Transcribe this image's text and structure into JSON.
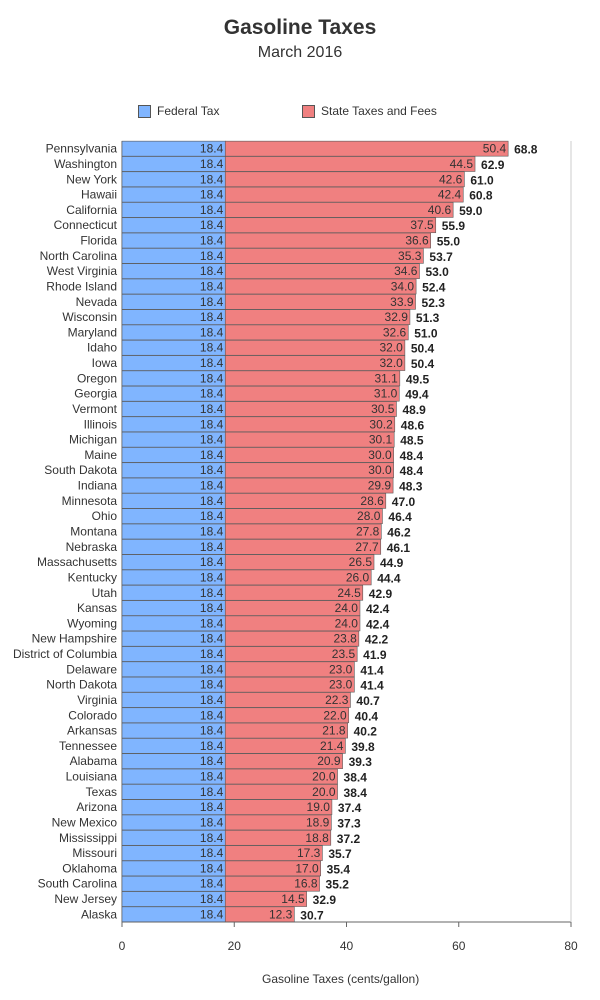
{
  "colors": {
    "federal": "#80b5ff",
    "state": "#f08080",
    "axis": "#666666",
    "text": "#333333"
  },
  "chart_data": {
    "type": "bar",
    "orientation": "horizontal",
    "stacked": true,
    "title": "Gasoline Taxes",
    "subtitle": "March 2016",
    "xlabel": "Gasoline Taxes (cents/gallon)",
    "xlim": [
      0,
      80
    ],
    "xticks": [
      0,
      20,
      40,
      60,
      80
    ],
    "grid": false,
    "legend_position": "top",
    "categories": [
      "Pennsylvania",
      "Washington",
      "New York",
      "Hawaii",
      "California",
      "Connecticut",
      "Florida",
      "North Carolina",
      "West Virginia",
      "Rhode Island",
      "Nevada",
      "Wisconsin",
      "Maryland",
      "Idaho",
      "Iowa",
      "Oregon",
      "Georgia",
      "Vermont",
      "Illinois",
      "Michigan",
      "Maine",
      "South Dakota",
      "Indiana",
      "Minnesota",
      "Ohio",
      "Montana",
      "Nebraska",
      "Massachusetts",
      "Kentucky",
      "Utah",
      "Kansas",
      "Wyoming",
      "New Hampshire",
      "District of Columbia",
      "Delaware",
      "North Dakota",
      "Virginia",
      "Colorado",
      "Arkansas",
      "Tennessee",
      "Alabama",
      "Louisiana",
      "Texas",
      "Arizona",
      "New Mexico",
      "Mississippi",
      "Missouri",
      "Oklahoma",
      "South Carolina",
      "New Jersey",
      "Alaska"
    ],
    "series": [
      {
        "name": "Federal Tax",
        "values": [
          18.4,
          18.4,
          18.4,
          18.4,
          18.4,
          18.4,
          18.4,
          18.4,
          18.4,
          18.4,
          18.4,
          18.4,
          18.4,
          18.4,
          18.4,
          18.4,
          18.4,
          18.4,
          18.4,
          18.4,
          18.4,
          18.4,
          18.4,
          18.4,
          18.4,
          18.4,
          18.4,
          18.4,
          18.4,
          18.4,
          18.4,
          18.4,
          18.4,
          18.4,
          18.4,
          18.4,
          18.4,
          18.4,
          18.4,
          18.4,
          18.4,
          18.4,
          18.4,
          18.4,
          18.4,
          18.4,
          18.4,
          18.4,
          18.4,
          18.4,
          18.4
        ]
      },
      {
        "name": "State Taxes and Fees",
        "values": [
          50.4,
          44.5,
          42.6,
          42.4,
          40.6,
          37.5,
          36.6,
          35.3,
          34.6,
          34.0,
          33.9,
          32.9,
          32.6,
          32.0,
          32.0,
          31.1,
          31.0,
          30.5,
          30.2,
          30.1,
          30.0,
          30.0,
          29.9,
          28.6,
          28.0,
          27.8,
          27.7,
          26.5,
          26.0,
          24.5,
          24.0,
          24.0,
          23.8,
          23.5,
          23.0,
          23.0,
          22.3,
          22.0,
          21.8,
          21.4,
          20.9,
          20.0,
          20.0,
          19.0,
          18.9,
          18.8,
          17.3,
          17.0,
          16.8,
          14.5,
          12.3
        ]
      }
    ],
    "totals": [
      68.8,
      62.9,
      61.0,
      60.8,
      59.0,
      55.9,
      55.0,
      53.7,
      53.0,
      52.4,
      52.3,
      51.3,
      51.0,
      50.4,
      50.4,
      49.5,
      49.4,
      48.9,
      48.6,
      48.5,
      48.4,
      48.4,
      48.3,
      47.0,
      46.4,
      46.2,
      46.1,
      44.9,
      44.4,
      42.9,
      42.4,
      42.4,
      42.2,
      41.9,
      41.4,
      41.4,
      40.7,
      40.4,
      40.2,
      39.8,
      39.3,
      38.4,
      38.4,
      37.4,
      37.3,
      37.2,
      35.7,
      35.4,
      35.2,
      32.9,
      30.7
    ]
  }
}
